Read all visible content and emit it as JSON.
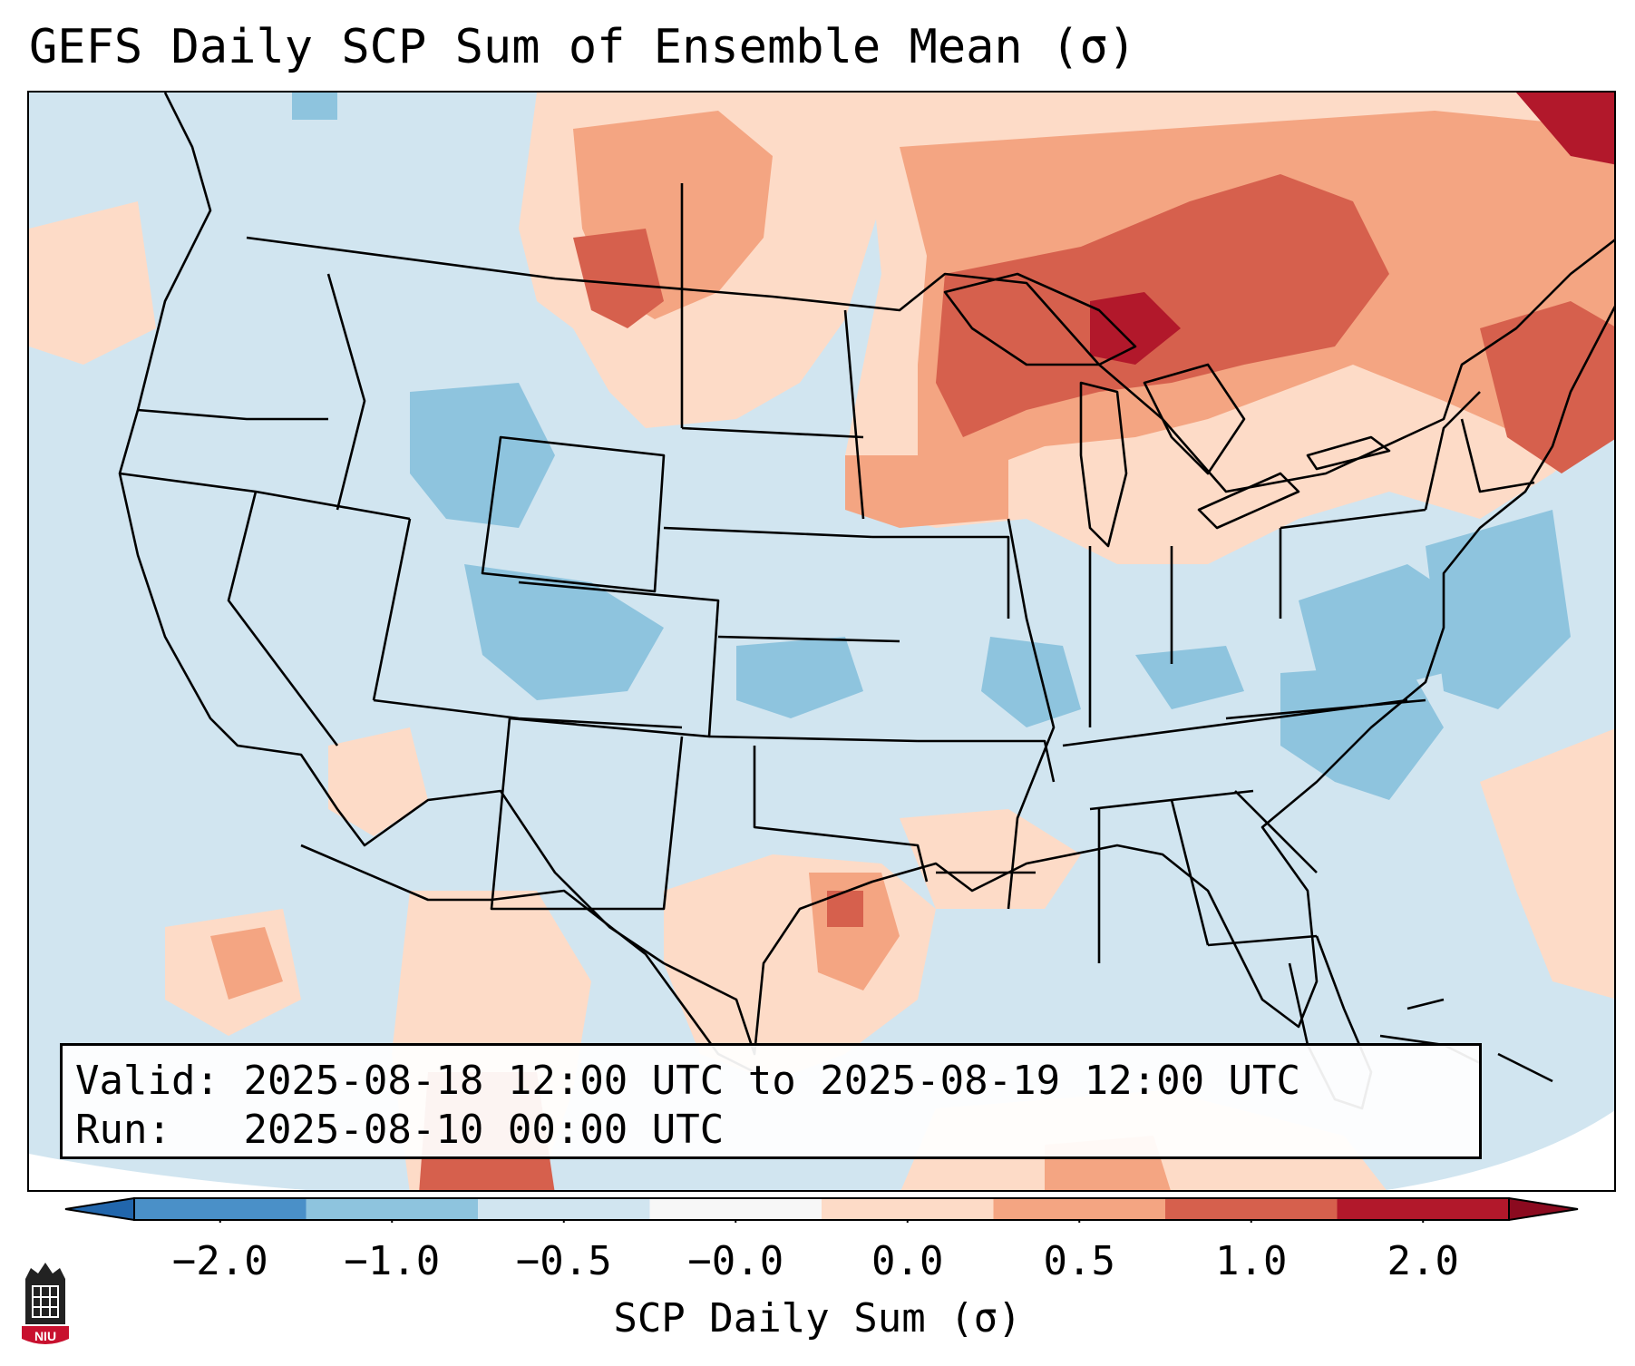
{
  "title": "GEFS Daily SCP Sum of Ensemble Mean (σ)",
  "info": {
    "valid_label": "Valid:",
    "valid_value": "2025-08-18 12:00 UTC to 2025-08-19 12:00 UTC",
    "run_label": "Run:",
    "run_value": "2025-08-10 00:00 UTC"
  },
  "colorbar": {
    "label": "SCP Daily Sum (σ)",
    "ticks": [
      "−2.0",
      "−1.0",
      "−0.5",
      "−0.0",
      "0.0",
      "0.5",
      "1.0",
      "2.0"
    ],
    "colors": [
      "#4a90c8",
      "#8ec4de",
      "#d1e5f0",
      "#f7f7f7",
      "#fddbc7",
      "#f4a582",
      "#d6604d",
      "#b2182b"
    ],
    "extend": "both"
  },
  "map": {
    "region": "Contiguous United States",
    "ocean_color": "#d1e5f0",
    "features": [
      "state boundaries",
      "coastlines",
      "Great Lakes"
    ]
  },
  "logo": {
    "text": "NIU"
  }
}
